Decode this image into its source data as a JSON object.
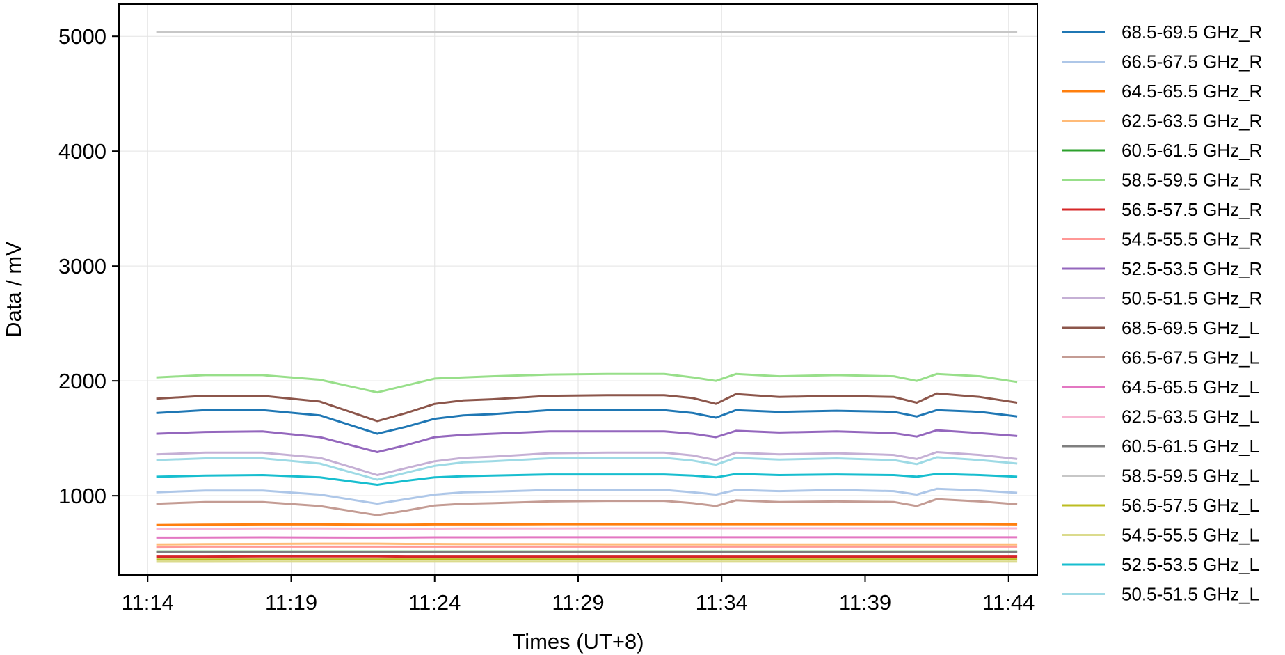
{
  "chart_data": {
    "type": "line",
    "title": "",
    "xlabel": "Times (UT+8)",
    "ylabel": "Data / mV",
    "x_ticks": [
      "11:14",
      "11:19",
      "11:24",
      "11:29",
      "11:34",
      "11:39",
      "11:44"
    ],
    "y_ticks": [
      1000,
      2000,
      3000,
      4000,
      5000
    ],
    "xlim": [
      "11:13",
      "11:45"
    ],
    "ylim": [
      310,
      5280
    ],
    "grid": true,
    "legend_position": "outside-right",
    "x": [
      "11:14.3",
      "11:16",
      "11:18",
      "11:20",
      "11:22",
      "11:23",
      "11:24",
      "11:25",
      "11:26",
      "11:28",
      "11:30",
      "11:32",
      "11:33",
      "11:33.8",
      "11:34.5",
      "11:36",
      "11:38",
      "11:40",
      "11:40.8",
      "11:41.5",
      "11:43",
      "11:44.3"
    ],
    "series": [
      {
        "name": "68.5-69.5 GHz_R",
        "color": "#1f77b4",
        "values": [
          1720,
          1745,
          1745,
          1700,
          1540,
          1600,
          1670,
          1700,
          1710,
          1745,
          1745,
          1745,
          1720,
          1680,
          1745,
          1730,
          1740,
          1730,
          1690,
          1745,
          1730,
          1690
        ]
      },
      {
        "name": "66.5-67.5 GHz_R",
        "color": "#aec7e8",
        "values": [
          1030,
          1045,
          1045,
          1010,
          930,
          970,
          1010,
          1030,
          1035,
          1050,
          1050,
          1050,
          1030,
          1010,
          1050,
          1040,
          1050,
          1040,
          1010,
          1060,
          1045,
          1025
        ]
      },
      {
        "name": "64.5-65.5 GHz_R",
        "color": "#ff7f0e",
        "values": [
          745,
          748,
          750,
          750,
          748,
          748,
          750,
          750,
          750,
          752,
          752,
          752,
          752,
          752,
          752,
          752,
          752,
          752,
          752,
          752,
          752,
          750
        ]
      },
      {
        "name": "62.5-63.5 GHz_R",
        "color": "#ffbb78",
        "values": [
          575,
          578,
          580,
          582,
          582,
          580,
          580,
          578,
          578,
          578,
          576,
          576,
          576,
          576,
          575,
          575,
          575,
          575,
          575,
          575,
          575,
          575
        ]
      },
      {
        "name": "60.5-61.5 GHz_R",
        "color": "#2ca02c",
        "values": [
          515,
          515,
          515,
          515,
          515,
          515,
          515,
          515,
          515,
          515,
          515,
          515,
          515,
          515,
          515,
          515,
          515,
          515,
          515,
          515,
          515,
          515
        ]
      },
      {
        "name": "58.5-59.5 GHz_R",
        "color": "#98df8a",
        "values": [
          2030,
          2050,
          2050,
          2010,
          1900,
          1960,
          2020,
          2030,
          2040,
          2055,
          2060,
          2060,
          2030,
          2000,
          2060,
          2040,
          2050,
          2040,
          2000,
          2060,
          2040,
          1990
        ]
      },
      {
        "name": "56.5-57.5 GHz_R",
        "color": "#d62728",
        "values": [
          470,
          470,
          472,
          472,
          472,
          470,
          470,
          470,
          470,
          470,
          470,
          470,
          470,
          470,
          470,
          470,
          470,
          470,
          470,
          470,
          470,
          470
        ]
      },
      {
        "name": "54.5-55.5 GHz_R",
        "color": "#ff9896",
        "values": [
          555,
          556,
          556,
          556,
          556,
          556,
          556,
          556,
          556,
          556,
          556,
          556,
          556,
          556,
          556,
          556,
          556,
          556,
          556,
          556,
          556,
          556
        ]
      },
      {
        "name": "52.5-53.5 GHz_R",
        "color": "#9467bd",
        "values": [
          1540,
          1555,
          1560,
          1510,
          1380,
          1440,
          1510,
          1530,
          1540,
          1560,
          1560,
          1560,
          1540,
          1510,
          1565,
          1550,
          1560,
          1545,
          1515,
          1570,
          1545,
          1520
        ]
      },
      {
        "name": "50.5-51.5 GHz_R",
        "color": "#c5b0d5",
        "values": [
          1360,
          1375,
          1375,
          1330,
          1180,
          1240,
          1300,
          1330,
          1340,
          1370,
          1375,
          1375,
          1350,
          1310,
          1375,
          1360,
          1370,
          1355,
          1320,
          1380,
          1355,
          1320
        ]
      },
      {
        "name": "68.5-69.5 GHz_L",
        "color": "#8c564b",
        "values": [
          1845,
          1870,
          1870,
          1820,
          1650,
          1720,
          1800,
          1830,
          1840,
          1870,
          1875,
          1875,
          1850,
          1800,
          1885,
          1860,
          1870,
          1860,
          1810,
          1890,
          1860,
          1810
        ]
      },
      {
        "name": "66.5-67.5 GHz_L",
        "color": "#c49c94",
        "values": [
          930,
          945,
          945,
          910,
          830,
          870,
          915,
          930,
          935,
          950,
          955,
          955,
          935,
          910,
          960,
          945,
          950,
          945,
          910,
          970,
          950,
          925
        ]
      },
      {
        "name": "64.5-65.5 GHz_L",
        "color": "#e377c2",
        "values": [
          635,
          636,
          637,
          636,
          635,
          636,
          637,
          637,
          637,
          638,
          638,
          638,
          638,
          638,
          638,
          638,
          638,
          638,
          638,
          638,
          638,
          638
        ]
      },
      {
        "name": "62.5-63.5 GHz_L",
        "color": "#f7b6d2",
        "values": [
          710,
          712,
          714,
          714,
          712,
          712,
          713,
          714,
          714,
          715,
          716,
          716,
          716,
          716,
          716,
          716,
          716,
          716,
          716,
          716,
          716,
          716
        ]
      },
      {
        "name": "60.5-61.5 GHz_L",
        "color": "#7f7f7f",
        "values": [
          510,
          510,
          511,
          511,
          510,
          510,
          510,
          510,
          510,
          510,
          510,
          510,
          510,
          510,
          510,
          510,
          510,
          510,
          510,
          510,
          510,
          510
        ]
      },
      {
        "name": "58.5-59.5 GHz_L",
        "color": "#c7c7c7",
        "values": [
          5040,
          5040,
          5040,
          5040,
          5040,
          5040,
          5040,
          5040,
          5040,
          5040,
          5040,
          5040,
          5040,
          5040,
          5040,
          5040,
          5040,
          5040,
          5040,
          5040,
          5040,
          5040
        ]
      },
      {
        "name": "56.5-57.5 GHz_L",
        "color": "#bcbd22",
        "values": [
          445,
          445,
          446,
          446,
          446,
          446,
          446,
          446,
          446,
          446,
          446,
          446,
          446,
          446,
          446,
          446,
          446,
          446,
          446,
          446,
          446,
          446
        ]
      },
      {
        "name": "54.5-55.5 GHz_L",
        "color": "#dbdb8d",
        "values": [
          425,
          425,
          426,
          426,
          426,
          426,
          426,
          426,
          426,
          426,
          426,
          426,
          426,
          426,
          426,
          426,
          426,
          426,
          426,
          426,
          426,
          426
        ]
      },
      {
        "name": "52.5-53.5 GHz_L",
        "color": "#17becf",
        "values": [
          1165,
          1175,
          1180,
          1160,
          1095,
          1130,
          1160,
          1170,
          1175,
          1185,
          1185,
          1185,
          1175,
          1160,
          1190,
          1180,
          1185,
          1180,
          1165,
          1190,
          1180,
          1165
        ]
      },
      {
        "name": "50.5-51.5 GHz_L",
        "color": "#9edae5",
        "values": [
          1310,
          1325,
          1325,
          1280,
          1140,
          1200,
          1260,
          1290,
          1300,
          1325,
          1330,
          1330,
          1305,
          1270,
          1330,
          1315,
          1325,
          1310,
          1275,
          1335,
          1310,
          1280
        ]
      }
    ]
  }
}
